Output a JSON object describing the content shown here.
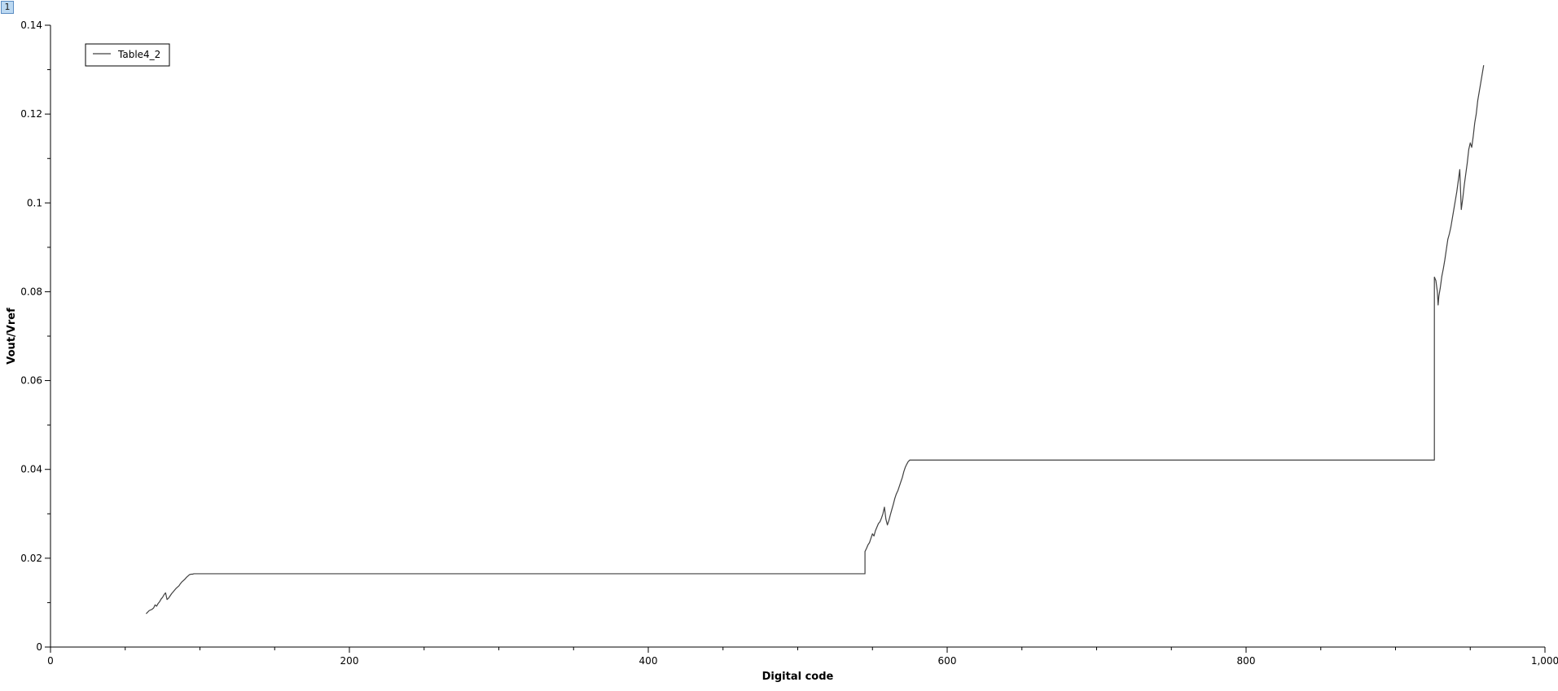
{
  "window": {
    "plot_index": "1"
  },
  "chart_data": {
    "type": "line",
    "title": "",
    "xlabel": "Digital code",
    "ylabel": "Vout/Vref",
    "xlim": [
      0,
      1000
    ],
    "ylim": [
      0,
      0.14
    ],
    "xticks": [
      0,
      200,
      400,
      600,
      800,
      1000
    ],
    "xtick_labels": [
      "0",
      "200",
      "400",
      "600",
      "800",
      "1,000"
    ],
    "xminor_step": 50,
    "yticks": [
      0,
      0.02,
      0.04,
      0.06,
      0.08,
      0.1,
      0.12,
      0.14
    ],
    "ytick_labels": [
      "0",
      "0.02",
      "0.04",
      "0.06",
      "0.08",
      "0.1",
      "0.12",
      "0.14"
    ],
    "yminor_step": 0.01,
    "grid": false,
    "legend": {
      "position": "top-left",
      "entries": [
        "Table4_2"
      ]
    },
    "line_color": "#404040",
    "series": [
      {
        "name": "Table4_2",
        "x": [
          64,
          66,
          68,
          69,
          70,
          71,
          72,
          73,
          74,
          75,
          76,
          77,
          78,
          79,
          80,
          81,
          82,
          83,
          84,
          85,
          86,
          87,
          88,
          89,
          90,
          91,
          92,
          93,
          94,
          95,
          96,
          96.5,
          545,
          545,
          546,
          547,
          548,
          549,
          550,
          551,
          552,
          553,
          554,
          555,
          556,
          557,
          558,
          559,
          560,
          561,
          562,
          563,
          564,
          565,
          566,
          567,
          568,
          569,
          570,
          571,
          572,
          573,
          574,
          575,
          576,
          576.5,
          926,
          926,
          927,
          928,
          928.5,
          929,
          930,
          931,
          932,
          933,
          934,
          935,
          936,
          937,
          938,
          939,
          940,
          941,
          942,
          943,
          944,
          945,
          946,
          947,
          948,
          949,
          950,
          951,
          952,
          953,
          954,
          955,
          956,
          957,
          958,
          959
        ],
        "y": [
          0.0075,
          0.0082,
          0.0085,
          0.0088,
          0.0095,
          0.0092,
          0.0098,
          0.0102,
          0.0108,
          0.0112,
          0.0118,
          0.0122,
          0.0107,
          0.011,
          0.0115,
          0.012,
          0.0124,
          0.0128,
          0.0132,
          0.0135,
          0.0138,
          0.0143,
          0.0147,
          0.015,
          0.0153,
          0.0157,
          0.016,
          0.0163,
          0.0164,
          0.0164,
          0.0165,
          0.0165,
          0.0165,
          0.0215,
          0.0222,
          0.023,
          0.0235,
          0.0245,
          0.0255,
          0.025,
          0.0262,
          0.027,
          0.0278,
          0.0282,
          0.029,
          0.03,
          0.0315,
          0.0288,
          0.0275,
          0.0285,
          0.0298,
          0.031,
          0.0322,
          0.0335,
          0.0345,
          0.0352,
          0.0362,
          0.0372,
          0.0382,
          0.0395,
          0.0405,
          0.0412,
          0.0418,
          0.0421,
          0.0421,
          0.0421,
          0.0421,
          0.0833,
          0.0825,
          0.08,
          0.077,
          0.079,
          0.081,
          0.0835,
          0.0852,
          0.0872,
          0.0895,
          0.0918,
          0.093,
          0.0945,
          0.0965,
          0.0985,
          0.1005,
          0.1025,
          0.105,
          0.1075,
          0.0985,
          0.101,
          0.104,
          0.1065,
          0.109,
          0.112,
          0.1135,
          0.1125,
          0.115,
          0.118,
          0.12,
          0.123,
          0.125,
          0.127,
          0.129,
          0.131
        ]
      }
    ]
  }
}
